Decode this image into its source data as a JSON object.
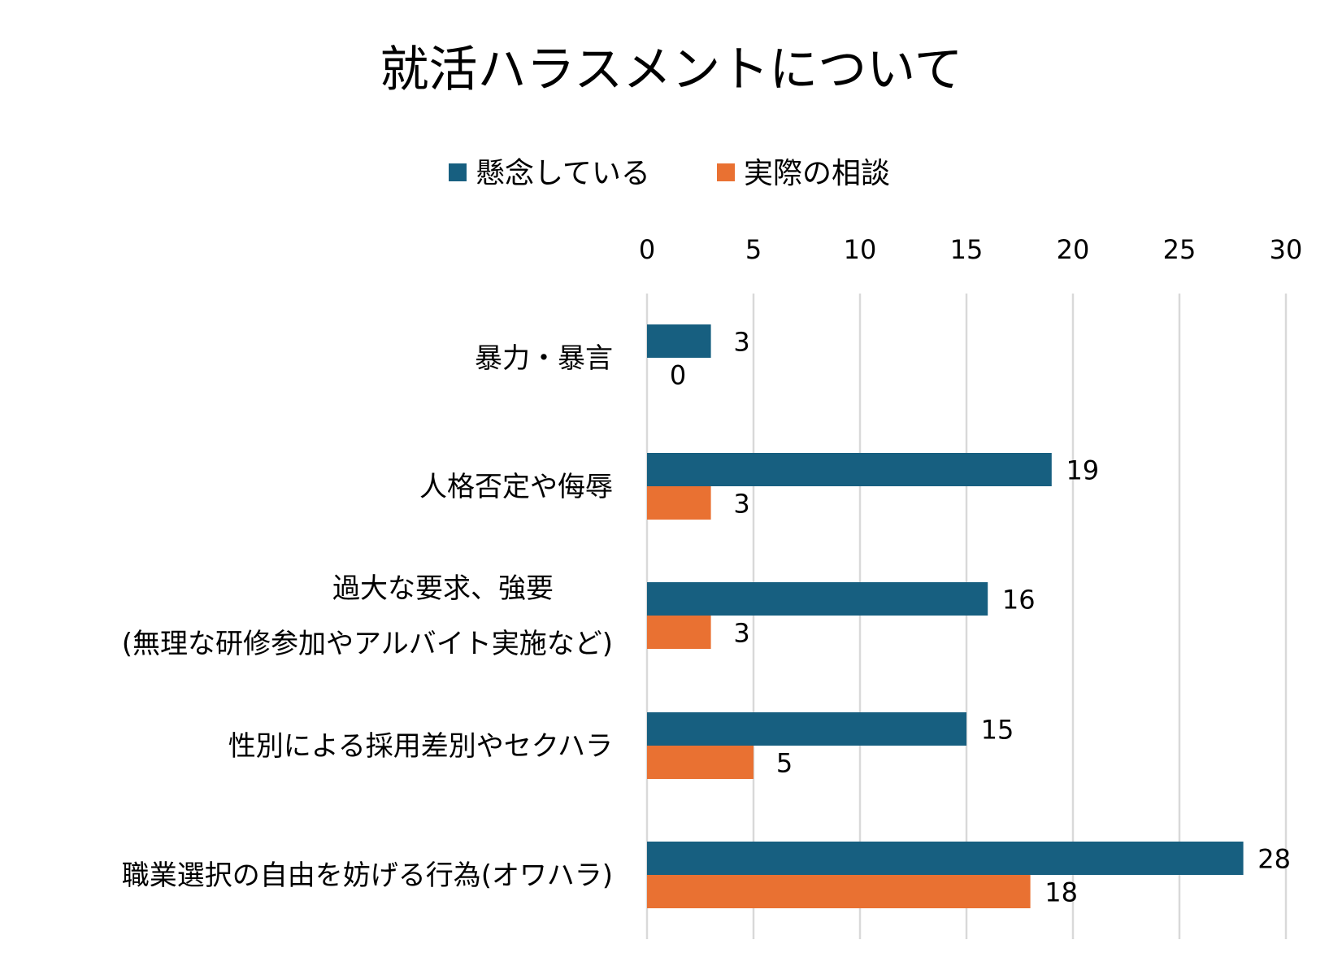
{
  "chart_data": {
    "type": "bar",
    "orientation": "horizontal",
    "title": "就活ハラスメントについて",
    "categories": [
      [
        "暴力・暴言"
      ],
      [
        "人格否定や侮辱"
      ],
      [
        "過大な要求、強要",
        "(無理な研修参加やアルバイト実施など)"
      ],
      [
        "性別による採用差別やセクハラ"
      ],
      [
        "職業選択の自由を妨げる行為(オワハラ)"
      ]
    ],
    "series": [
      {
        "name": "懸念している",
        "color": "#175f80",
        "values": [
          3,
          19,
          16,
          15,
          28
        ]
      },
      {
        "name": "実際の相談",
        "color": "#e97132",
        "values": [
          0,
          3,
          3,
          5,
          18
        ]
      }
    ],
    "xlim": [
      0,
      30
    ],
    "xticks": [
      "0",
      "5",
      "10",
      "15",
      "20",
      "25",
      "30"
    ],
    "axis_position": "top",
    "grid": true,
    "legend_position": "top-center",
    "data_labels": true
  }
}
